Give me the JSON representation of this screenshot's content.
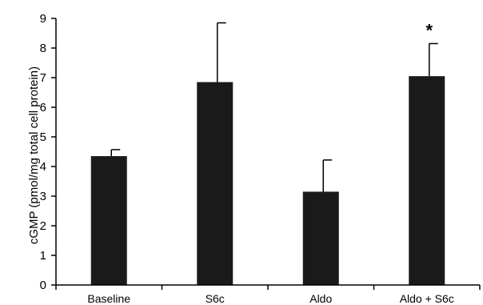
{
  "chart_data": {
    "type": "bar",
    "title": "",
    "xlabel": "",
    "ylabel": "cGMP (pmol/mg total cell protein)",
    "ylim": [
      0,
      9
    ],
    "yticks": [
      0,
      1,
      2,
      3,
      4,
      5,
      6,
      7,
      8,
      9
    ],
    "categories": [
      "Baseline",
      "S6c",
      "Aldo",
      "Aldo + S6c"
    ],
    "values": [
      4.35,
      6.85,
      3.15,
      7.05
    ],
    "error_upper": [
      4.57,
      8.85,
      4.22,
      8.15
    ],
    "annotations": [
      "",
      "",
      "",
      "*"
    ],
    "bar_color": "#1a1a1a",
    "grid": false,
    "legend": "none"
  }
}
